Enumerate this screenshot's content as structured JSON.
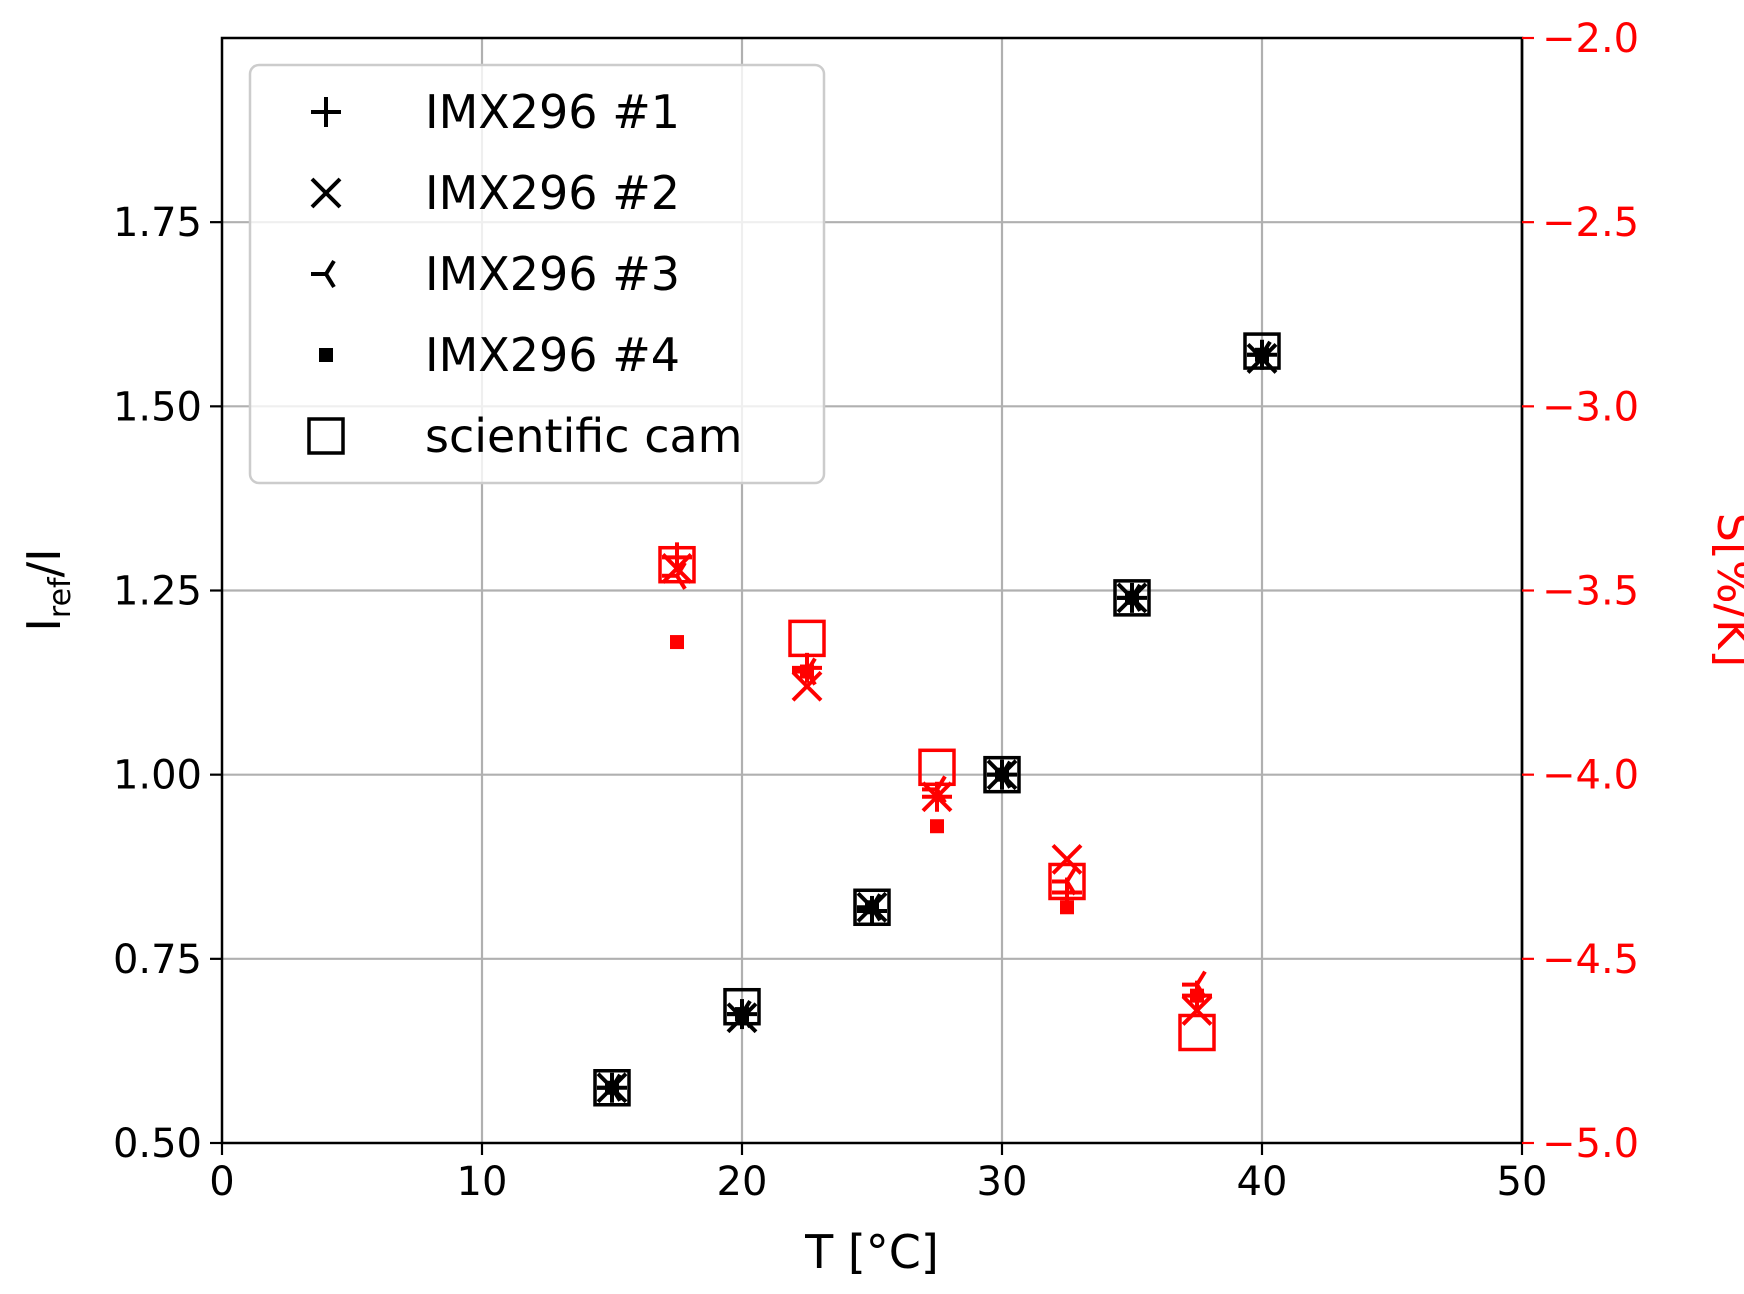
{
  "chart_data": {
    "type": "scatter",
    "xlabel": "T [°C]",
    "ylabel_main": "I",
    "ylabel_sub": "ref",
    "ylabel_tail": "/I",
    "y2label": "S[%/K]",
    "xlim": [
      0,
      50
    ],
    "ylim": [
      0.5,
      2.0
    ],
    "y2lim": [
      -5.0,
      -2.0
    ],
    "x_ticks": [
      0,
      10,
      20,
      30,
      40,
      50
    ],
    "x_tick_labels": [
      "0",
      "10",
      "20",
      "30",
      "40",
      "50"
    ],
    "y_ticks": [
      0.5,
      0.75,
      1.0,
      1.25,
      1.5,
      1.75
    ],
    "y_tick_labels": [
      "0.50",
      "0.75",
      "1.00",
      "1.25",
      "1.50",
      "1.75"
    ],
    "y2_ticks": [
      -5.0,
      -4.5,
      -4.0,
      -3.5,
      -3.0,
      -2.5,
      -2.0
    ],
    "y2_tick_labels": [
      "−5.0",
      "−4.5",
      "−4.0",
      "−3.5",
      "−3.0",
      "−2.5",
      "−2.0"
    ],
    "grid": true,
    "legend_position": "top-left",
    "colors": {
      "left_axis": "#000000",
      "right_axis": "#ff0000",
      "grid": "#b0b0b0",
      "legend_border": "#cccccc"
    },
    "series": [
      {
        "name": "IMX296 #1",
        "marker": "plus",
        "ratio": {
          "x": [
            15,
            20,
            25,
            30,
            35,
            40
          ],
          "y": [
            0.575,
            0.675,
            0.815,
            1.0,
            1.24,
            1.57
          ]
        },
        "sensitivity": {
          "x": [
            17.5,
            22.5,
            27.5,
            32.5,
            37.5
          ],
          "y": [
            -3.41,
            -3.71,
            -4.06,
            -4.32,
            -4.6
          ]
        }
      },
      {
        "name": "IMX296 #2",
        "marker": "x",
        "ratio": {
          "x": [
            15,
            20,
            25,
            30,
            35,
            40
          ],
          "y": [
            0.575,
            0.67,
            0.82,
            1.0,
            1.24,
            1.565
          ]
        },
        "sensitivity": {
          "x": [
            17.5,
            22.5,
            27.5,
            32.5,
            37.5
          ],
          "y": [
            -3.44,
            -3.76,
            -4.06,
            -4.23,
            -4.64
          ]
        }
      },
      {
        "name": "IMX296 #3",
        "marker": "tri_left",
        "ratio": {
          "x": [
            15,
            20,
            25,
            30,
            35,
            40
          ],
          "y": [
            0.575,
            0.675,
            0.82,
            1.0,
            1.24,
            1.57
          ]
        },
        "sensitivity": {
          "x": [
            17.5,
            22.5,
            27.5,
            32.5,
            37.5
          ],
          "y": [
            -3.46,
            -3.72,
            -4.04,
            -4.29,
            -4.57
          ]
        }
      },
      {
        "name": "IMX296 #4",
        "marker": "square_small",
        "ratio": {
          "x": [
            15,
            20,
            25,
            30,
            35,
            40
          ],
          "y": [
            0.575,
            0.675,
            0.82,
            1.0,
            1.24,
            1.57
          ]
        },
        "sensitivity": {
          "x": [
            17.5,
            22.5,
            27.5,
            32.5,
            37.5
          ],
          "y": [
            -3.64,
            -3.72,
            -4.14,
            -4.36,
            -4.6
          ]
        }
      },
      {
        "name": "scientific cam",
        "marker": "square_open",
        "ratio": {
          "x": [
            15,
            20,
            25,
            30,
            35,
            40
          ],
          "y": [
            0.575,
            0.685,
            0.82,
            1.0,
            1.24,
            1.575
          ]
        },
        "sensitivity": {
          "x": [
            17.5,
            22.5,
            27.5,
            32.5,
            37.5
          ],
          "y": [
            -3.43,
            -3.63,
            -3.98,
            -4.29,
            -4.7
          ]
        }
      }
    ]
  }
}
